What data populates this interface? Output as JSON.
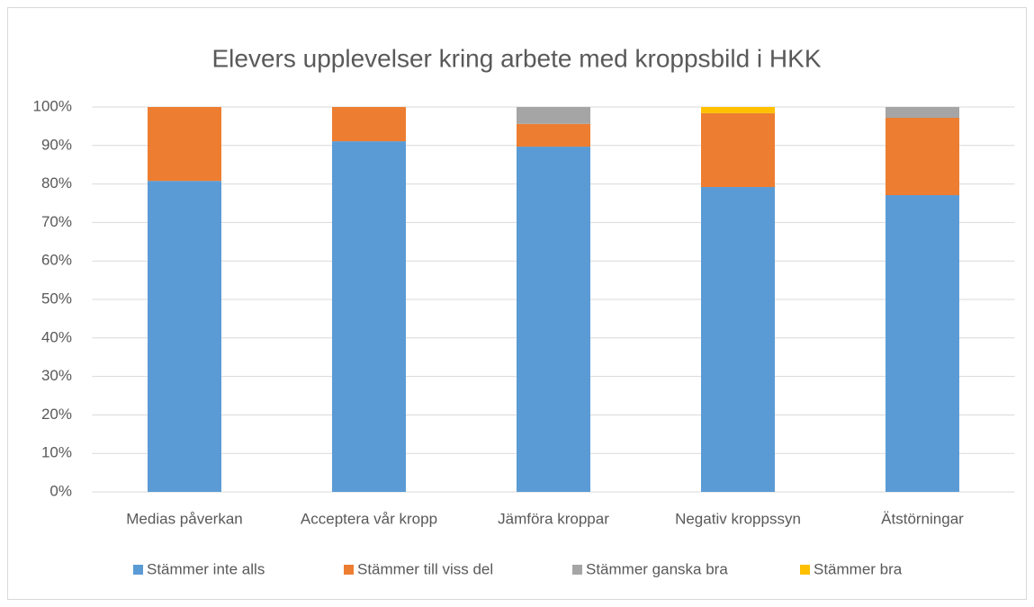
{
  "chart_data": {
    "type": "stacked_bar",
    "title": "Elevers upplevelser kring arbete med kroppsbild i HKK",
    "categories": [
      "Medias påverkan",
      "Acceptera vår kropp",
      "Jämföra kroppar",
      "Negativ kroppssyn",
      "Ätstörningar"
    ],
    "series": [
      {
        "name": "Stämmer inte alls",
        "color": "#5b9bd5",
        "values": [
          80.8,
          91.1,
          89.7,
          79.2,
          77.1
        ]
      },
      {
        "name": "Stämmer till viss del",
        "color": "#ed7d31",
        "values": [
          19.2,
          8.9,
          5.9,
          19.2,
          20.1
        ]
      },
      {
        "name": "Stämmer ganska bra",
        "color": "#a5a5a5",
        "values": [
          0,
          0,
          4.4,
          0,
          2.8
        ]
      },
      {
        "name": "Stämmer bra",
        "color": "#ffc000",
        "values": [
          0,
          0,
          0,
          1.6,
          0
        ]
      }
    ],
    "ylim": [
      0,
      100
    ],
    "yticks": [
      {
        "value": 0,
        "label": "0%"
      },
      {
        "value": 10,
        "label": "10%"
      },
      {
        "value": 20,
        "label": "20%"
      },
      {
        "value": 30,
        "label": "30%"
      },
      {
        "value": 40,
        "label": "40%"
      },
      {
        "value": 50,
        "label": "50%"
      },
      {
        "value": 60,
        "label": "60%"
      },
      {
        "value": 70,
        "label": "70%"
      },
      {
        "value": 80,
        "label": "80%"
      },
      {
        "value": 90,
        "label": "90%"
      },
      {
        "value": 100,
        "label": "100%"
      }
    ],
    "grid": true,
    "legend": "bottom"
  }
}
